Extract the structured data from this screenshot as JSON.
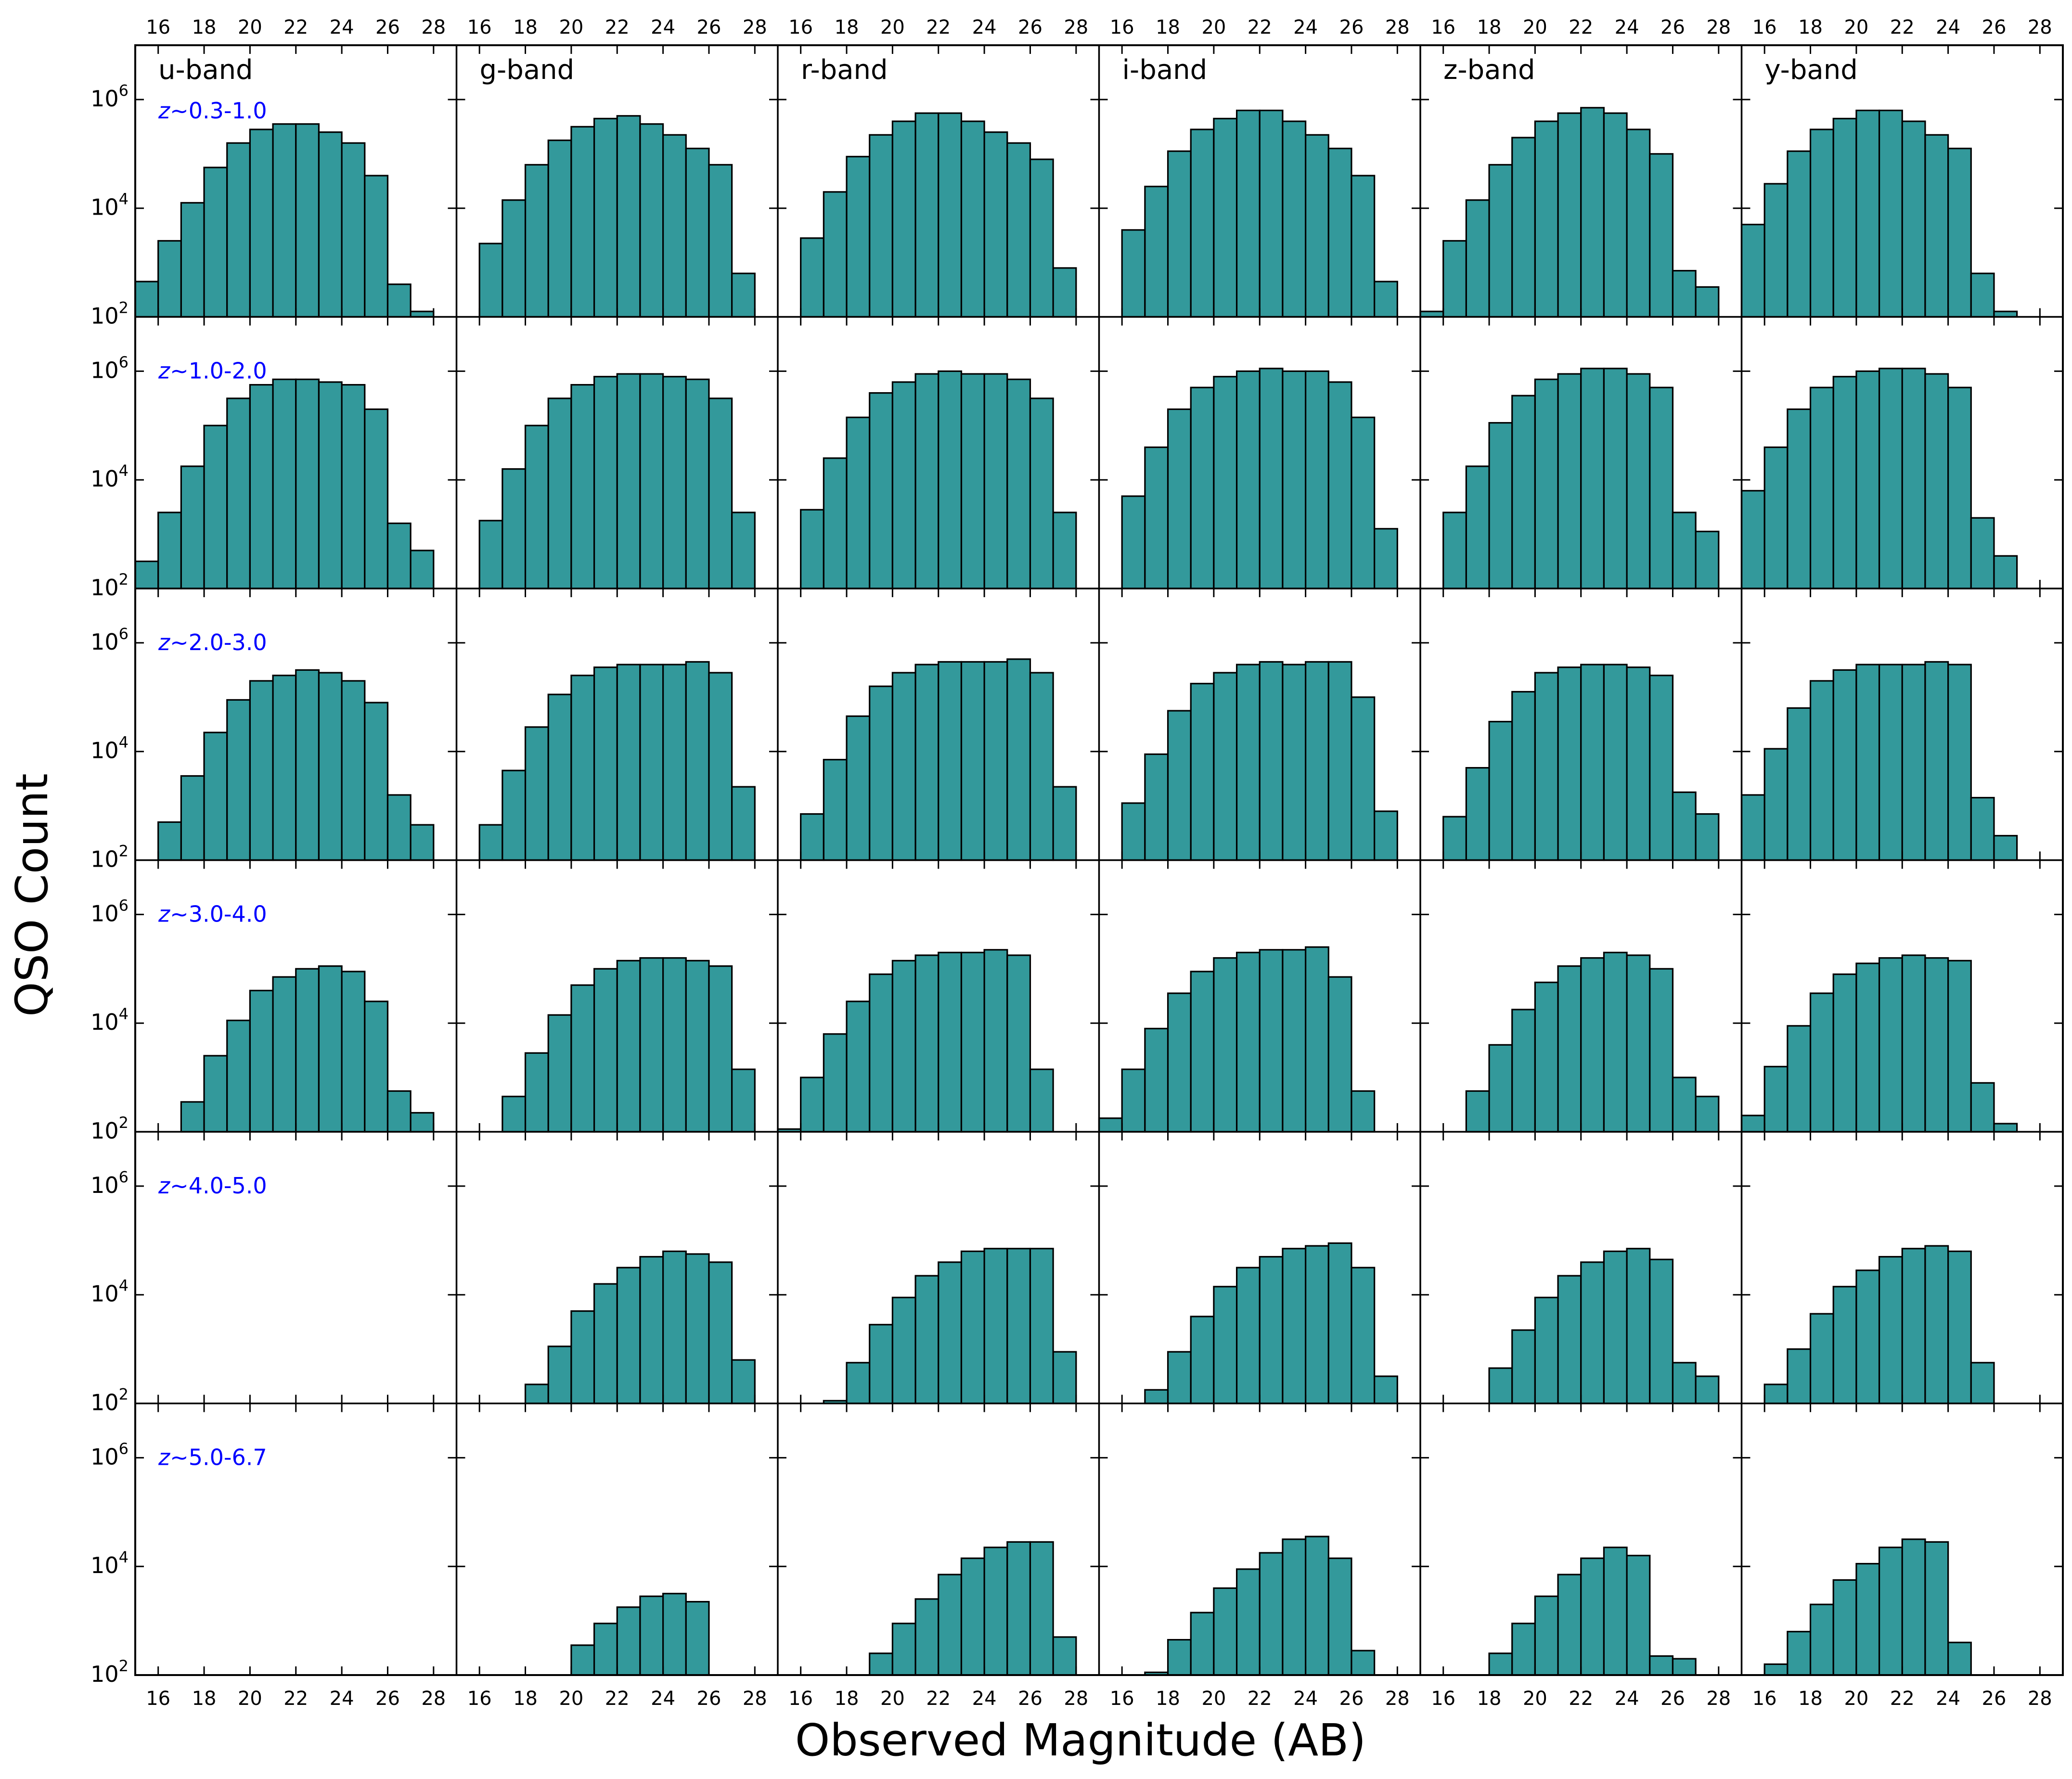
{
  "figure": {
    "xlabel": "Observed Magnitude (AB)",
    "ylabel": "QSO Count"
  },
  "colors": {
    "bar_fill": "#33999b",
    "bar_edge": "#000000",
    "redshift_label": "#0000ff"
  },
  "chart_data": {
    "type": "bar",
    "layout": "grid of 6 redshift rows by 6 band columns, shared axes",
    "xlim": [
      15,
      29
    ],
    "ylim_log10": [
      2,
      7
    ],
    "yscale": "log",
    "xticks": [
      16,
      18,
      20,
      22,
      24,
      26,
      28
    ],
    "yticks": [
      {
        "base": "10",
        "exp": "2"
      },
      {
        "base": "10",
        "exp": "4"
      },
      {
        "base": "10",
        "exp": "6"
      }
    ],
    "bin_edges": [
      15,
      16,
      17,
      18,
      19,
      20,
      21,
      22,
      23,
      24,
      25,
      26,
      27,
      28,
      29
    ],
    "value_encoding": "log10 of QSO count per 1-mag bin; null = no bar",
    "bands": [
      {
        "label": "u-band"
      },
      {
        "label": "g-band"
      },
      {
        "label": "r-band"
      },
      {
        "label": "i-band"
      },
      {
        "label": "z-band"
      },
      {
        "label": "y-band"
      }
    ],
    "rows": [
      {
        "z_prefix": "z",
        "z_range": "~0.3-1.0",
        "panels": [
          [
            2.65,
            3.4,
            4.1,
            4.75,
            5.2,
            5.45,
            5.55,
            5.55,
            5.4,
            5.2,
            4.6,
            2.6,
            2.1,
            null
          ],
          [
            null,
            3.35,
            4.15,
            4.8,
            5.25,
            5.5,
            5.65,
            5.7,
            5.55,
            5.35,
            5.1,
            4.8,
            2.8,
            null
          ],
          [
            null,
            3.45,
            4.3,
            4.95,
            5.35,
            5.6,
            5.75,
            5.75,
            5.6,
            5.4,
            5.2,
            4.9,
            2.9,
            null
          ],
          [
            null,
            3.6,
            4.4,
            5.05,
            5.45,
            5.65,
            5.8,
            5.8,
            5.6,
            5.35,
            5.1,
            4.6,
            2.65,
            null
          ],
          [
            2.1,
            3.4,
            4.15,
            4.8,
            5.3,
            5.6,
            5.75,
            5.85,
            5.75,
            5.45,
            5.0,
            2.85,
            2.55,
            null
          ],
          [
            3.7,
            4.45,
            5.05,
            5.45,
            5.65,
            5.8,
            5.8,
            5.6,
            5.35,
            5.1,
            2.8,
            2.1,
            null,
            null
          ]
        ]
      },
      {
        "z_prefix": "z",
        "z_range": "~1.0-2.0",
        "panels": [
          [
            2.5,
            3.4,
            4.25,
            5.0,
            5.5,
            5.75,
            5.85,
            5.85,
            5.8,
            5.75,
            5.3,
            3.2,
            2.7,
            null
          ],
          [
            null,
            3.25,
            4.2,
            5.0,
            5.5,
            5.75,
            5.9,
            5.95,
            5.95,
            5.9,
            5.85,
            5.5,
            3.4,
            null
          ],
          [
            null,
            3.45,
            4.4,
            5.15,
            5.6,
            5.8,
            5.95,
            6.0,
            5.95,
            5.95,
            5.85,
            5.5,
            3.4,
            null
          ],
          [
            null,
            3.7,
            4.6,
            5.3,
            5.7,
            5.9,
            6.0,
            6.05,
            6.0,
            6.0,
            5.8,
            5.15,
            3.1,
            null
          ],
          [
            null,
            3.4,
            4.25,
            5.05,
            5.55,
            5.85,
            5.95,
            6.05,
            6.05,
            5.95,
            5.7,
            3.4,
            3.05,
            null
          ],
          [
            3.8,
            4.6,
            5.3,
            5.7,
            5.9,
            6.0,
            6.05,
            6.05,
            5.95,
            5.7,
            3.3,
            2.6,
            null,
            null
          ]
        ]
      },
      {
        "z_prefix": "z",
        "z_range": "~2.0-3.0",
        "panels": [
          [
            null,
            2.7,
            3.55,
            4.35,
            4.95,
            5.3,
            5.4,
            5.5,
            5.45,
            5.3,
            4.9,
            3.2,
            2.65,
            null
          ],
          [
            null,
            2.65,
            3.65,
            4.45,
            5.05,
            5.4,
            5.55,
            5.6,
            5.6,
            5.6,
            5.65,
            5.45,
            3.35,
            null
          ],
          [
            null,
            2.85,
            3.85,
            4.65,
            5.2,
            5.45,
            5.6,
            5.65,
            5.65,
            5.65,
            5.7,
            5.45,
            3.35,
            null
          ],
          [
            null,
            3.05,
            3.95,
            4.75,
            5.25,
            5.45,
            5.6,
            5.65,
            5.6,
            5.65,
            5.65,
            5.0,
            2.9,
            null
          ],
          [
            null,
            2.8,
            3.7,
            4.55,
            5.1,
            5.45,
            5.55,
            5.6,
            5.6,
            5.55,
            5.4,
            3.25,
            2.85,
            null
          ],
          [
            3.2,
            4.05,
            4.8,
            5.3,
            5.5,
            5.6,
            5.6,
            5.6,
            5.65,
            5.6,
            3.15,
            2.45,
            null,
            null
          ]
        ]
      },
      {
        "z_prefix": "z",
        "z_range": "~3.0-4.0",
        "panels": [
          [
            null,
            null,
            2.55,
            3.4,
            4.05,
            4.6,
            4.85,
            5.0,
            5.05,
            4.95,
            4.4,
            2.75,
            2.35,
            null
          ],
          [
            null,
            null,
            2.65,
            3.45,
            4.15,
            4.7,
            5.0,
            5.15,
            5.2,
            5.2,
            5.15,
            5.05,
            3.15,
            null
          ],
          [
            2.05,
            3.0,
            3.8,
            4.4,
            4.9,
            5.15,
            5.25,
            5.3,
            5.3,
            5.35,
            5.25,
            3.15,
            null,
            null
          ],
          [
            2.25,
            3.15,
            3.9,
            4.55,
            4.95,
            5.2,
            5.3,
            5.35,
            5.35,
            5.4,
            4.85,
            2.75,
            null,
            null
          ],
          [
            null,
            null,
            2.75,
            3.6,
            4.25,
            4.75,
            5.05,
            5.2,
            5.3,
            5.25,
            5.0,
            3.0,
            2.65,
            null
          ],
          [
            2.3,
            3.2,
            3.95,
            4.55,
            4.9,
            5.1,
            5.2,
            5.25,
            5.2,
            5.15,
            2.9,
            2.15,
            null,
            null
          ]
        ]
      },
      {
        "z_prefix": "z",
        "z_range": "~4.0-5.0",
        "panels": [
          [
            null,
            null,
            null,
            null,
            null,
            null,
            null,
            null,
            null,
            null,
            null,
            null,
            null,
            null
          ],
          [
            null,
            null,
            null,
            2.35,
            3.05,
            3.7,
            4.2,
            4.5,
            4.7,
            4.8,
            4.75,
            4.6,
            2.8,
            null
          ],
          [
            null,
            null,
            2.05,
            2.75,
            3.45,
            3.95,
            4.35,
            4.6,
            4.8,
            4.85,
            4.85,
            4.85,
            2.95,
            null
          ],
          [
            null,
            null,
            2.25,
            2.95,
            3.6,
            4.15,
            4.5,
            4.7,
            4.85,
            4.9,
            4.95,
            4.5,
            2.5,
            null
          ],
          [
            null,
            null,
            null,
            2.65,
            3.35,
            3.95,
            4.35,
            4.6,
            4.8,
            4.85,
            4.65,
            2.75,
            2.5,
            null
          ],
          [
            null,
            2.35,
            3.0,
            3.65,
            4.15,
            4.45,
            4.7,
            4.85,
            4.9,
            4.8,
            2.75,
            null,
            null,
            null
          ]
        ]
      },
      {
        "z_prefix": "z",
        "z_range": "~5.0-6.7",
        "panels": [
          [
            null,
            null,
            null,
            null,
            null,
            null,
            null,
            null,
            null,
            null,
            null,
            null,
            null,
            null
          ],
          [
            null,
            null,
            null,
            null,
            null,
            2.55,
            2.95,
            3.25,
            3.45,
            3.5,
            3.35,
            null,
            null,
            null
          ],
          [
            null,
            null,
            null,
            null,
            2.4,
            2.95,
            3.4,
            3.85,
            4.15,
            4.35,
            4.45,
            4.45,
            2.7,
            null
          ],
          [
            null,
            null,
            2.05,
            2.65,
            3.15,
            3.6,
            3.95,
            4.25,
            4.5,
            4.55,
            4.15,
            2.45,
            null,
            null
          ],
          [
            null,
            null,
            null,
            2.4,
            2.95,
            3.45,
            3.85,
            4.15,
            4.35,
            4.2,
            2.35,
            2.3,
            null,
            null
          ],
          [
            null,
            2.2,
            2.8,
            3.3,
            3.75,
            4.05,
            4.35,
            4.5,
            4.45,
            2.6,
            null,
            null,
            null,
            null
          ]
        ]
      }
    ]
  }
}
